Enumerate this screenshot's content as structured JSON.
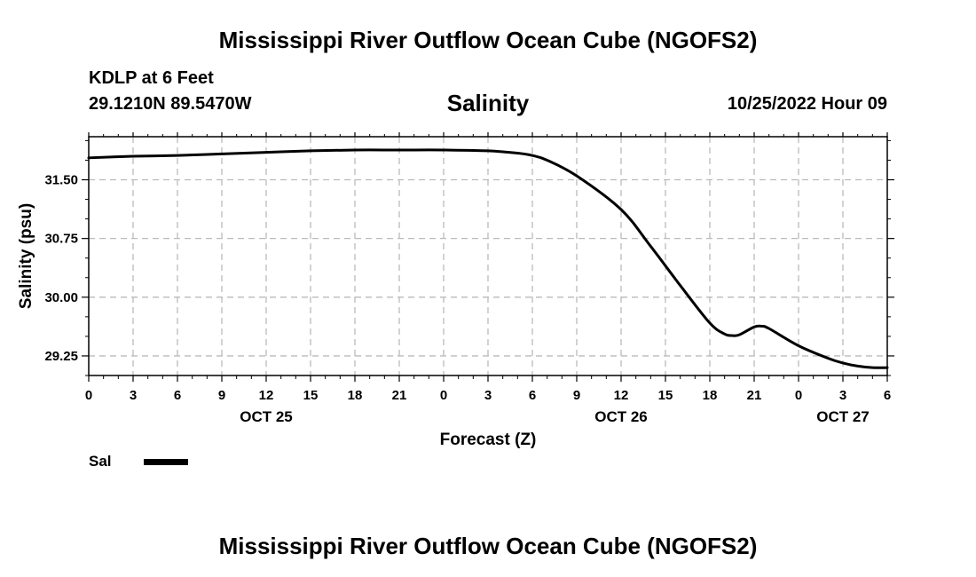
{
  "header": {
    "title": "Mississippi River Outflow Ocean Cube (NGOFS2)",
    "station": "KDLP at 6 Feet",
    "coordinates": "29.1210N  89.5470W",
    "datetime": "10/25/2022 Hour 09",
    "footer_title": "Mississippi River Outflow Ocean Cube (NGOFS2)"
  },
  "chart_data": {
    "type": "line",
    "title": "Salinity",
    "xlabel": "Forecast (Z)",
    "ylabel": "Salinity (psu)",
    "xlim": [
      0,
      54
    ],
    "ylim": [
      29.0,
      32.05
    ],
    "grid": true,
    "x_ticks": [
      0,
      3,
      6,
      9,
      12,
      15,
      18,
      21,
      24,
      27,
      30,
      33,
      36,
      39,
      42,
      45,
      48,
      51,
      54
    ],
    "x_tick_labels": [
      "0",
      "3",
      "6",
      "9",
      "12",
      "15",
      "18",
      "21",
      "0",
      "3",
      "6",
      "9",
      "12",
      "15",
      "18",
      "21",
      "0",
      "3",
      "6"
    ],
    "x_date_labels": [
      {
        "x": 12,
        "label": "OCT 25"
      },
      {
        "x": 36,
        "label": "OCT 26"
      },
      {
        "x": 51,
        "label": "OCT 27"
      }
    ],
    "y_ticks": [
      29.25,
      30.0,
      30.75,
      31.5
    ],
    "y_tick_labels": [
      "29.25",
      "30.00",
      "30.75",
      "31.50"
    ],
    "legend": [
      {
        "name": "Sal",
        "color": "#000000"
      }
    ],
    "series": [
      {
        "name": "Sal",
        "color": "#000000",
        "x": [
          0,
          3,
          6,
          9,
          12,
          15,
          18,
          21,
          24,
          27,
          29,
          30,
          31,
          33,
          36,
          38,
          40,
          42,
          43,
          43.5,
          44,
          45,
          45.5,
          46,
          48,
          50,
          51,
          52,
          53,
          54
        ],
        "y": [
          31.78,
          31.8,
          31.81,
          31.83,
          31.85,
          31.87,
          31.88,
          31.88,
          31.88,
          31.87,
          31.84,
          31.81,
          31.75,
          31.55,
          31.12,
          30.65,
          30.15,
          29.67,
          29.53,
          29.51,
          29.52,
          29.62,
          29.63,
          29.6,
          29.38,
          29.22,
          29.16,
          29.12,
          29.1,
          29.1
        ]
      }
    ]
  }
}
